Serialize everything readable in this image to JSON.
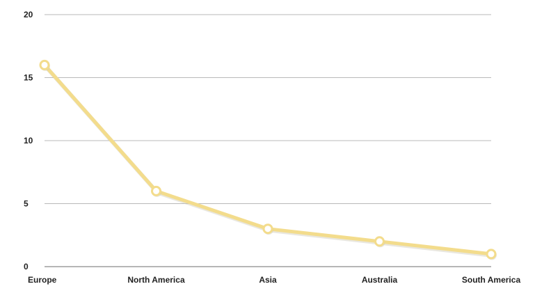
{
  "chart_data": {
    "type": "line",
    "title": "",
    "xlabel": "",
    "ylabel": "",
    "categories": [
      "Europe",
      "North America",
      "Asia",
      "Australia",
      "South America"
    ],
    "series": [
      {
        "values": [
          16,
          6,
          3,
          2,
          1
        ]
      }
    ],
    "ylim": [
      0,
      20
    ],
    "yticks": [
      "0",
      "5",
      "10",
      "15",
      "20"
    ],
    "grid": true,
    "legend": "none",
    "colors": {
      "line": "#f3dc8c",
      "line_shadow": "#cfc9b8",
      "marker_fill": "#ffffff",
      "grid": "#b9b9b9",
      "axis": "#6e6e6e",
      "text": "#222222"
    }
  }
}
